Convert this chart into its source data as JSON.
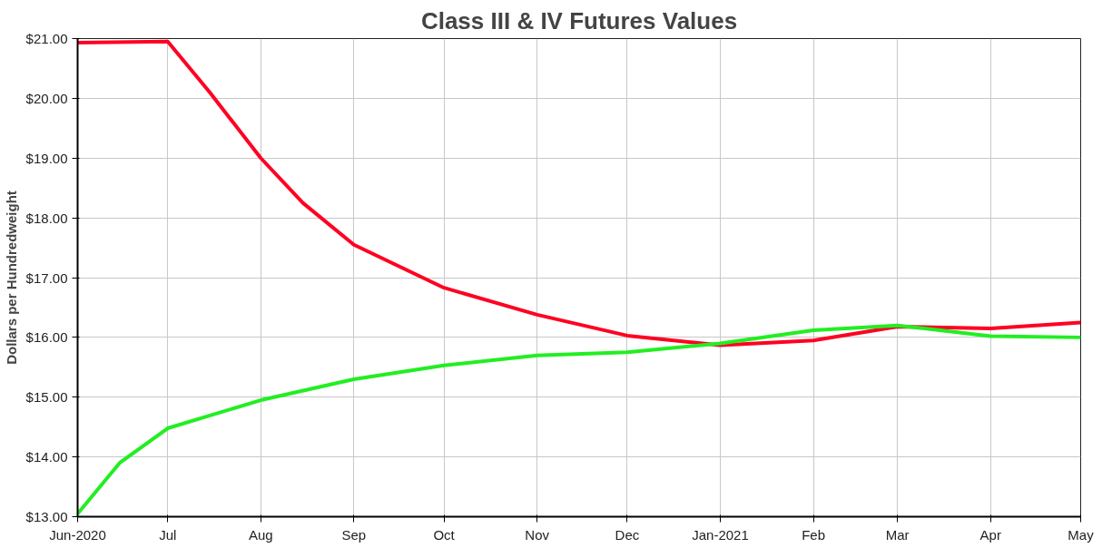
{
  "chart_data": {
    "type": "line",
    "title": "Class III & IV Futures Values",
    "ylabel": "Dollars per Hundredweight",
    "series": [
      {
        "color": "#ff0022",
        "x": [
          "2020-06-01",
          "2020-07-01",
          "2020-07-15",
          "2020-08-01",
          "2020-08-15",
          "2020-09-01",
          "2020-10-01",
          "2020-11-01",
          "2020-12-01",
          "2021-01-01",
          "2021-02-01",
          "2021-03-01",
          "2021-04-01",
          "2021-05-01"
        ],
        "values": [
          20.93,
          20.95,
          20.1,
          19.0,
          18.25,
          17.55,
          16.83,
          16.38,
          16.03,
          15.87,
          15.95,
          16.18,
          16.15,
          16.25
        ]
      },
      {
        "color": "#22ee22",
        "x": [
          "2020-06-01",
          "2020-06-15",
          "2020-07-01",
          "2020-08-01",
          "2020-09-01",
          "2020-10-01",
          "2020-11-01",
          "2020-12-01",
          "2021-01-01",
          "2021-02-01",
          "2021-03-01",
          "2021-04-01",
          "2021-05-01"
        ],
        "values": [
          13.05,
          13.9,
          14.48,
          14.95,
          15.3,
          15.53,
          15.7,
          15.75,
          15.9,
          16.12,
          16.2,
          16.02,
          16.0
        ]
      }
    ],
    "xlim": [
      "2020-06-01",
      "2021-05-01"
    ],
    "xticks": [
      {
        "value": "2020-06-01",
        "label": "Jun-2020"
      },
      {
        "value": "2020-07-01",
        "label": "Jul"
      },
      {
        "value": "2020-08-01",
        "label": "Aug"
      },
      {
        "value": "2020-09-01",
        "label": "Sep"
      },
      {
        "value": "2020-10-01",
        "label": "Oct"
      },
      {
        "value": "2020-11-01",
        "label": "Nov"
      },
      {
        "value": "2020-12-01",
        "label": "Dec"
      },
      {
        "value": "2021-01-01",
        "label": "Jan-2021"
      },
      {
        "value": "2021-02-01",
        "label": "Feb"
      },
      {
        "value": "2021-03-01",
        "label": "Mar"
      },
      {
        "value": "2021-04-01",
        "label": "Apr"
      },
      {
        "value": "2021-05-01",
        "label": "May"
      }
    ],
    "ylim": [
      13,
      21
    ],
    "yticks": [
      {
        "value": 13,
        "label": "$13.00"
      },
      {
        "value": 14,
        "label": "$14.00"
      },
      {
        "value": 15,
        "label": "$15.00"
      },
      {
        "value": 16,
        "label": "$16.00"
      },
      {
        "value": 17,
        "label": "$17.00"
      },
      {
        "value": 18,
        "label": "$18.00"
      },
      {
        "value": 19,
        "label": "$19.00"
      },
      {
        "value": 20,
        "label": "$20.00"
      },
      {
        "value": 21,
        "label": "$21.00"
      }
    ],
    "grid": true,
    "line_style": "solid",
    "marker": "none"
  }
}
